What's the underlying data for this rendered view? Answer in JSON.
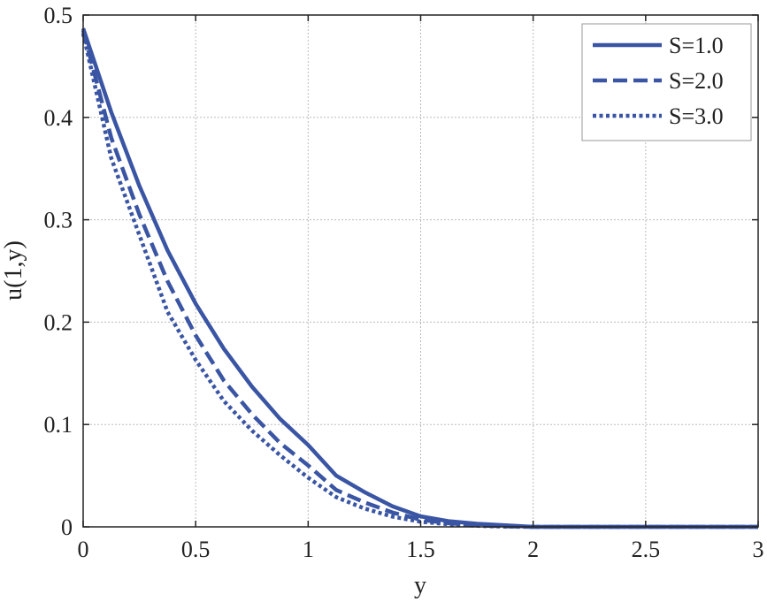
{
  "chart_data": {
    "type": "line",
    "title": "",
    "xlabel": "y",
    "ylabel": "u(1,y)",
    "xlim": [
      0,
      3
    ],
    "ylim": [
      0,
      0.5
    ],
    "x_ticks": [
      "0",
      "0.5",
      "1",
      "1.5",
      "2",
      "2.5",
      "3"
    ],
    "y_ticks": [
      "0",
      "0.1",
      "0.2",
      "0.3",
      "0.4",
      "0.5"
    ],
    "grid": true,
    "legend_position": "top-right",
    "line_color": "#3a55a4",
    "series": [
      {
        "name": "S=1.0",
        "style": "solid",
        "x": [
          0,
          0.125,
          0.25,
          0.375,
          0.5,
          0.625,
          0.75,
          0.875,
          1.0,
          1.125,
          1.25,
          1.375,
          1.5,
          1.625,
          1.75,
          1.875,
          2.0,
          2.25,
          2.5,
          2.75,
          3.0
        ],
        "y": [
          0.487,
          0.405,
          0.333,
          0.27,
          0.218,
          0.174,
          0.137,
          0.1055,
          0.08,
          0.05,
          0.034,
          0.02,
          0.0103,
          0.0055,
          0.003,
          0.0015,
          0.0,
          0.0,
          0.0,
          0.0,
          0.0
        ]
      },
      {
        "name": "S=2.0",
        "style": "dashed",
        "x": [
          0,
          0.125,
          0.25,
          0.375,
          0.5,
          0.625,
          0.75,
          0.875,
          1.0,
          1.125,
          1.25,
          1.375,
          1.5,
          1.625,
          1.75,
          1.875,
          2.0,
          2.25,
          2.5,
          2.75,
          3.0
        ],
        "y": [
          0.485,
          0.38,
          0.305,
          0.24,
          0.187,
          0.143,
          0.11,
          0.082,
          0.06,
          0.036,
          0.024,
          0.014,
          0.007,
          0.0035,
          0.0015,
          0.0005,
          0.0,
          0.0,
          0.0,
          0.0,
          0.0
        ]
      },
      {
        "name": "S=3.0",
        "style": "dotted",
        "x": [
          0,
          0.125,
          0.25,
          0.375,
          0.5,
          0.625,
          0.75,
          0.875,
          1.0,
          1.125,
          1.25,
          1.375,
          1.5,
          1.625,
          1.75,
          1.875,
          2.0,
          2.25,
          2.5,
          2.75,
          3.0
        ],
        "y": [
          0.482,
          0.36,
          0.285,
          0.21,
          0.163,
          0.123,
          0.094,
          0.07,
          0.048,
          0.029,
          0.018,
          0.01,
          0.005,
          0.0025,
          0.001,
          0.0003,
          0.0,
          0.0,
          0.0,
          0.0,
          0.0
        ]
      }
    ]
  }
}
